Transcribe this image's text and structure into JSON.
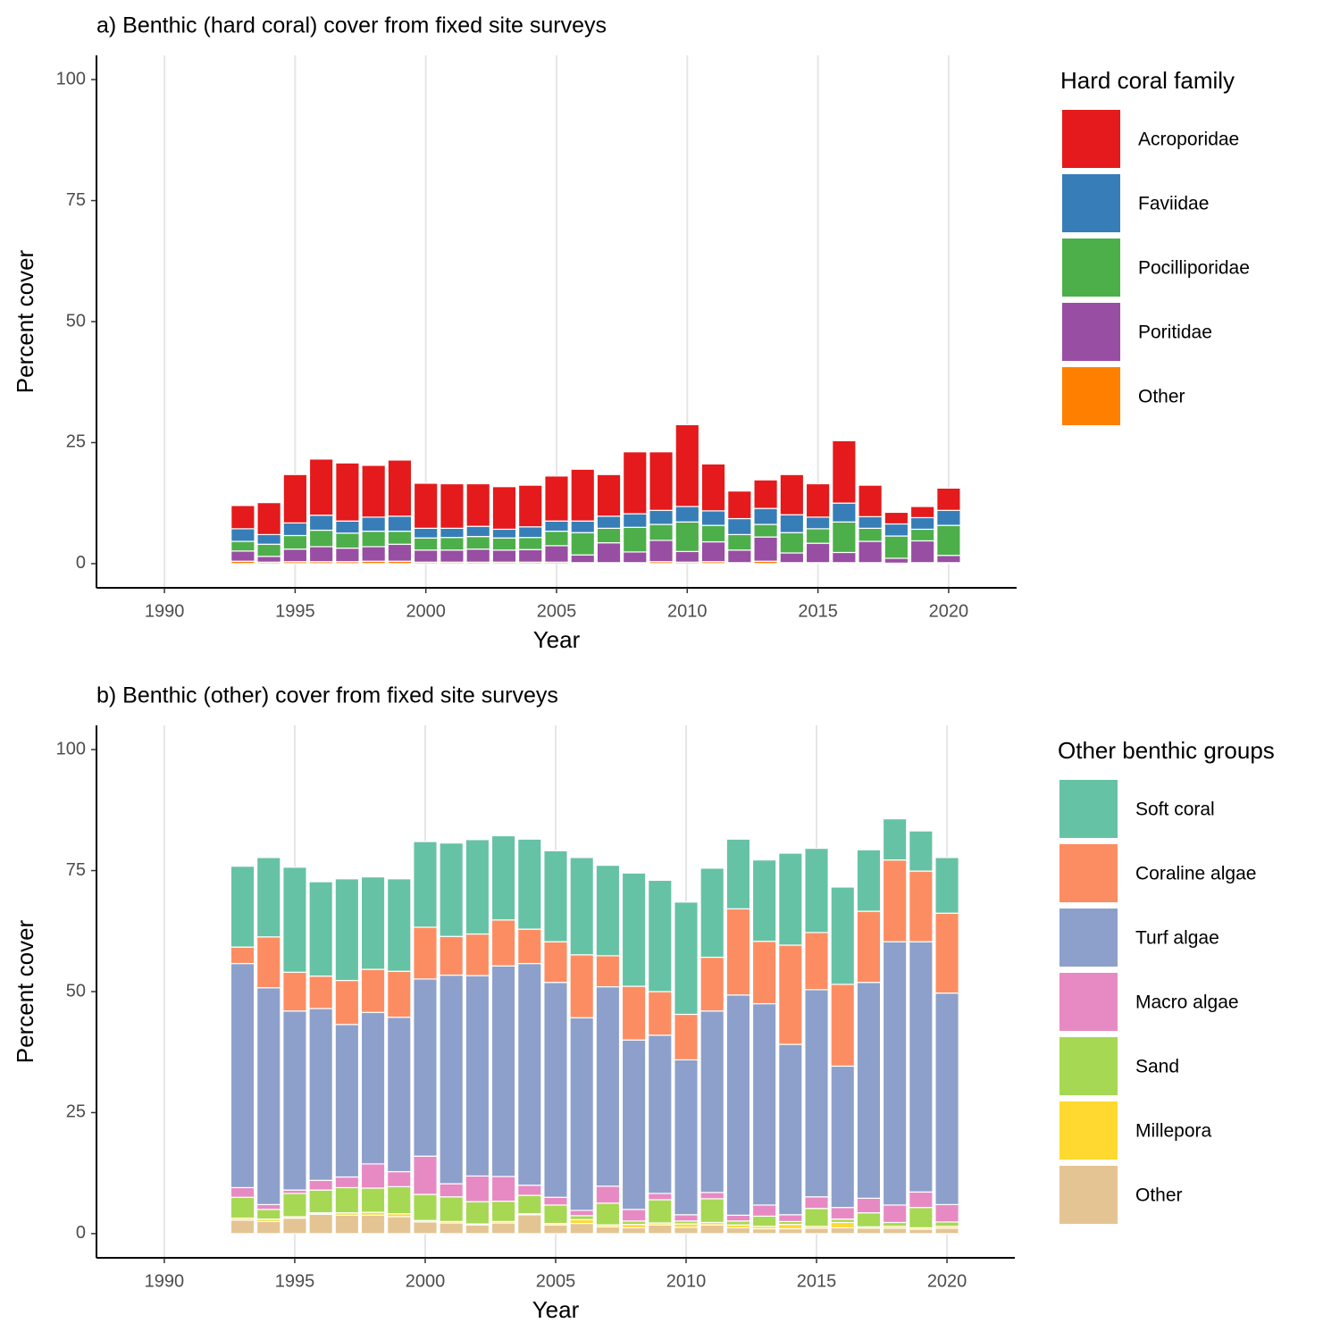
{
  "chart_data": [
    {
      "type": "bar",
      "stacked": true,
      "title": "a) Benthic (hard coral) cover from fixed site surveys",
      "xlabel": "Year",
      "ylabel": "Percent cover",
      "legend_title": "Hard coral family",
      "x": [
        1993,
        1994,
        1995,
        1996,
        1997,
        1998,
        1999,
        2000,
        2001,
        2002,
        2003,
        2004,
        2005,
        2006,
        2007,
        2008,
        2009,
        2010,
        2011,
        2012,
        2013,
        2014,
        2015,
        2016,
        2017,
        2018,
        2019,
        2020
      ],
      "series": [
        {
          "name": "Other",
          "color": "#ff7f00",
          "values": [
            0.5,
            0.3,
            0.4,
            0.4,
            0.4,
            0.5,
            0.5,
            0.3,
            0.3,
            0.3,
            0.3,
            0.3,
            0.3,
            0.2,
            0.2,
            0.2,
            0.4,
            0.3,
            0.4,
            0.2,
            0.5,
            0.2,
            0.2,
            0.2,
            0.2,
            0.1,
            0.2,
            0.2
          ]
        },
        {
          "name": "Poritidae",
          "color": "#984ea3",
          "values": [
            2.1,
            1.2,
            2.6,
            3.1,
            2.8,
            3.0,
            3.5,
            2.5,
            2.5,
            2.7,
            2.5,
            2.6,
            3.4,
            1.6,
            4.1,
            2.2,
            4.4,
            2.2,
            4.1,
            2.6,
            5.0,
            2.0,
            4.0,
            2.1,
            4.4,
            1.0,
            4.5,
            1.5
          ]
        },
        {
          "name": "Pocilliporidae",
          "color": "#4daf4a",
          "values": [
            2.0,
            2.5,
            2.8,
            3.4,
            3.1,
            3.2,
            2.7,
            2.5,
            2.6,
            2.6,
            2.5,
            2.5,
            3.0,
            4.6,
            3.0,
            5.1,
            3.3,
            6.1,
            3.4,
            3.2,
            2.6,
            4.2,
            3.0,
            6.3,
            2.7,
            4.6,
            2.4,
            6.2
          ]
        },
        {
          "name": "Faviidae",
          "color": "#377eb8",
          "values": [
            2.6,
            2.0,
            2.6,
            3.1,
            2.5,
            2.9,
            3.1,
            2.0,
            1.9,
            2.1,
            1.8,
            2.2,
            2.1,
            2.4,
            2.5,
            2.8,
            2.9,
            3.2,
            3.0,
            3.3,
            3.3,
            3.7,
            2.4,
            3.9,
            2.4,
            2.5,
            2.4,
            3.1
          ]
        },
        {
          "name": "Acroporidae",
          "color": "#e41a1c",
          "values": [
            4.8,
            6.6,
            10.0,
            11.6,
            12.0,
            10.7,
            11.6,
            9.3,
            9.2,
            8.8,
            8.8,
            8.6,
            9.3,
            10.7,
            8.6,
            12.8,
            12.1,
            16.9,
            9.7,
            5.7,
            5.9,
            8.3,
            6.9,
            12.9,
            6.5,
            2.4,
            2.3,
            4.6
          ]
        }
      ],
      "xlim": [
        1987.4,
        2022.6
      ],
      "ylim": [
        -5,
        105
      ],
      "xticks": [
        1990,
        1995,
        2000,
        2005,
        2010,
        2015,
        2020
      ],
      "yticks": [
        0,
        25,
        50,
        75,
        100
      ],
      "grid": "x-major"
    },
    {
      "type": "bar",
      "stacked": true,
      "title": "b) Benthic (other) cover from fixed site surveys",
      "xlabel": "Year",
      "ylabel": "Percent cover",
      "legend_title": "Other benthic groups",
      "x": [
        1993,
        1994,
        1995,
        1996,
        1997,
        1998,
        1999,
        2000,
        2001,
        2002,
        2003,
        2004,
        2005,
        2006,
        2007,
        2008,
        2009,
        2010,
        2011,
        2012,
        2013,
        2014,
        2015,
        2016,
        2017,
        2018,
        2019,
        2020
      ],
      "series": [
        {
          "name": "Other",
          "color": "#e5c494",
          "values": [
            2.8,
            2.5,
            3.2,
            4.0,
            3.8,
            3.8,
            3.5,
            2.4,
            2.2,
            1.8,
            2.2,
            3.9,
            1.8,
            2.1,
            1.4,
            1.2,
            1.8,
            1.3,
            1.8,
            1.2,
            1.0,
            1.0,
            1.1,
            1.2,
            1.1,
            1.1,
            0.9,
            1.1
          ]
        },
        {
          "name": "Millepora",
          "color": "#ffd92f",
          "values": [
            0.4,
            0.5,
            0.3,
            0.3,
            0.5,
            0.6,
            0.6,
            0.3,
            0.3,
            0.2,
            0.3,
            0.2,
            0.3,
            0.8,
            0.4,
            0.7,
            0.4,
            0.7,
            0.5,
            0.6,
            0.5,
            0.9,
            0.4,
            1.1,
            0.3,
            0.4,
            0.3,
            0.4
          ]
        },
        {
          "name": "Sand",
          "color": "#a6d854",
          "values": [
            4.3,
            2.0,
            4.8,
            4.7,
            5.2,
            5.0,
            5.6,
            5.4,
            5.1,
            4.6,
            4.2,
            3.8,
            3.8,
            0.8,
            4.5,
            0.7,
            4.8,
            0.6,
            4.9,
            0.8,
            2.1,
            0.6,
            3.7,
            0.7,
            2.9,
            0.8,
            4.2,
            0.9
          ]
        },
        {
          "name": "Macro algae",
          "color": "#e78ac3",
          "values": [
            2.0,
            1.0,
            0.7,
            2.0,
            2.2,
            5.0,
            3.1,
            7.9,
            2.7,
            5.3,
            5.1,
            2.1,
            1.6,
            1.1,
            3.5,
            2.4,
            1.3,
            1.3,
            1.3,
            1.2,
            2.3,
            1.4,
            2.4,
            2.4,
            3.0,
            3.6,
            3.2,
            3.6
          ]
        },
        {
          "name": "Turf algae",
          "color": "#8da0cb",
          "values": [
            46.3,
            44.8,
            37.0,
            35.5,
            31.5,
            31.3,
            31.9,
            36.6,
            43.1,
            41.4,
            43.5,
            45.8,
            44.4,
            39.8,
            41.2,
            35.0,
            32.7,
            32.0,
            37.5,
            45.5,
            41.6,
            35.2,
            42.8,
            29.2,
            44.6,
            54.4,
            51.7,
            43.7
          ]
        },
        {
          "name": "Coraline algae",
          "color": "#fc8d62",
          "values": [
            3.4,
            10.5,
            8.0,
            6.7,
            9.1,
            8.9,
            9.5,
            10.7,
            8.0,
            8.6,
            9.5,
            7.1,
            8.4,
            13.0,
            6.4,
            11.1,
            9.0,
            9.4,
            11.1,
            17.8,
            12.9,
            20.5,
            11.8,
            16.9,
            14.7,
            16.9,
            14.6,
            16.5
          ]
        },
        {
          "name": "Soft coral",
          "color": "#66c2a5",
          "values": [
            16.7,
            16.4,
            21.7,
            19.5,
            21.0,
            19.1,
            19.1,
            17.7,
            19.3,
            19.5,
            17.4,
            18.6,
            18.8,
            20.1,
            18.7,
            23.4,
            23.0,
            23.2,
            18.4,
            14.4,
            16.8,
            19.0,
            17.4,
            20.1,
            12.7,
            8.5,
            8.3,
            11.5
          ]
        }
      ],
      "xlim": [
        1987.4,
        2022.6
      ],
      "ylim": [
        -5,
        105
      ],
      "xticks": [
        1990,
        1995,
        2000,
        2005,
        2010,
        2015,
        2020
      ],
      "yticks": [
        0,
        25,
        50,
        75,
        100
      ],
      "grid": "x-major"
    }
  ]
}
